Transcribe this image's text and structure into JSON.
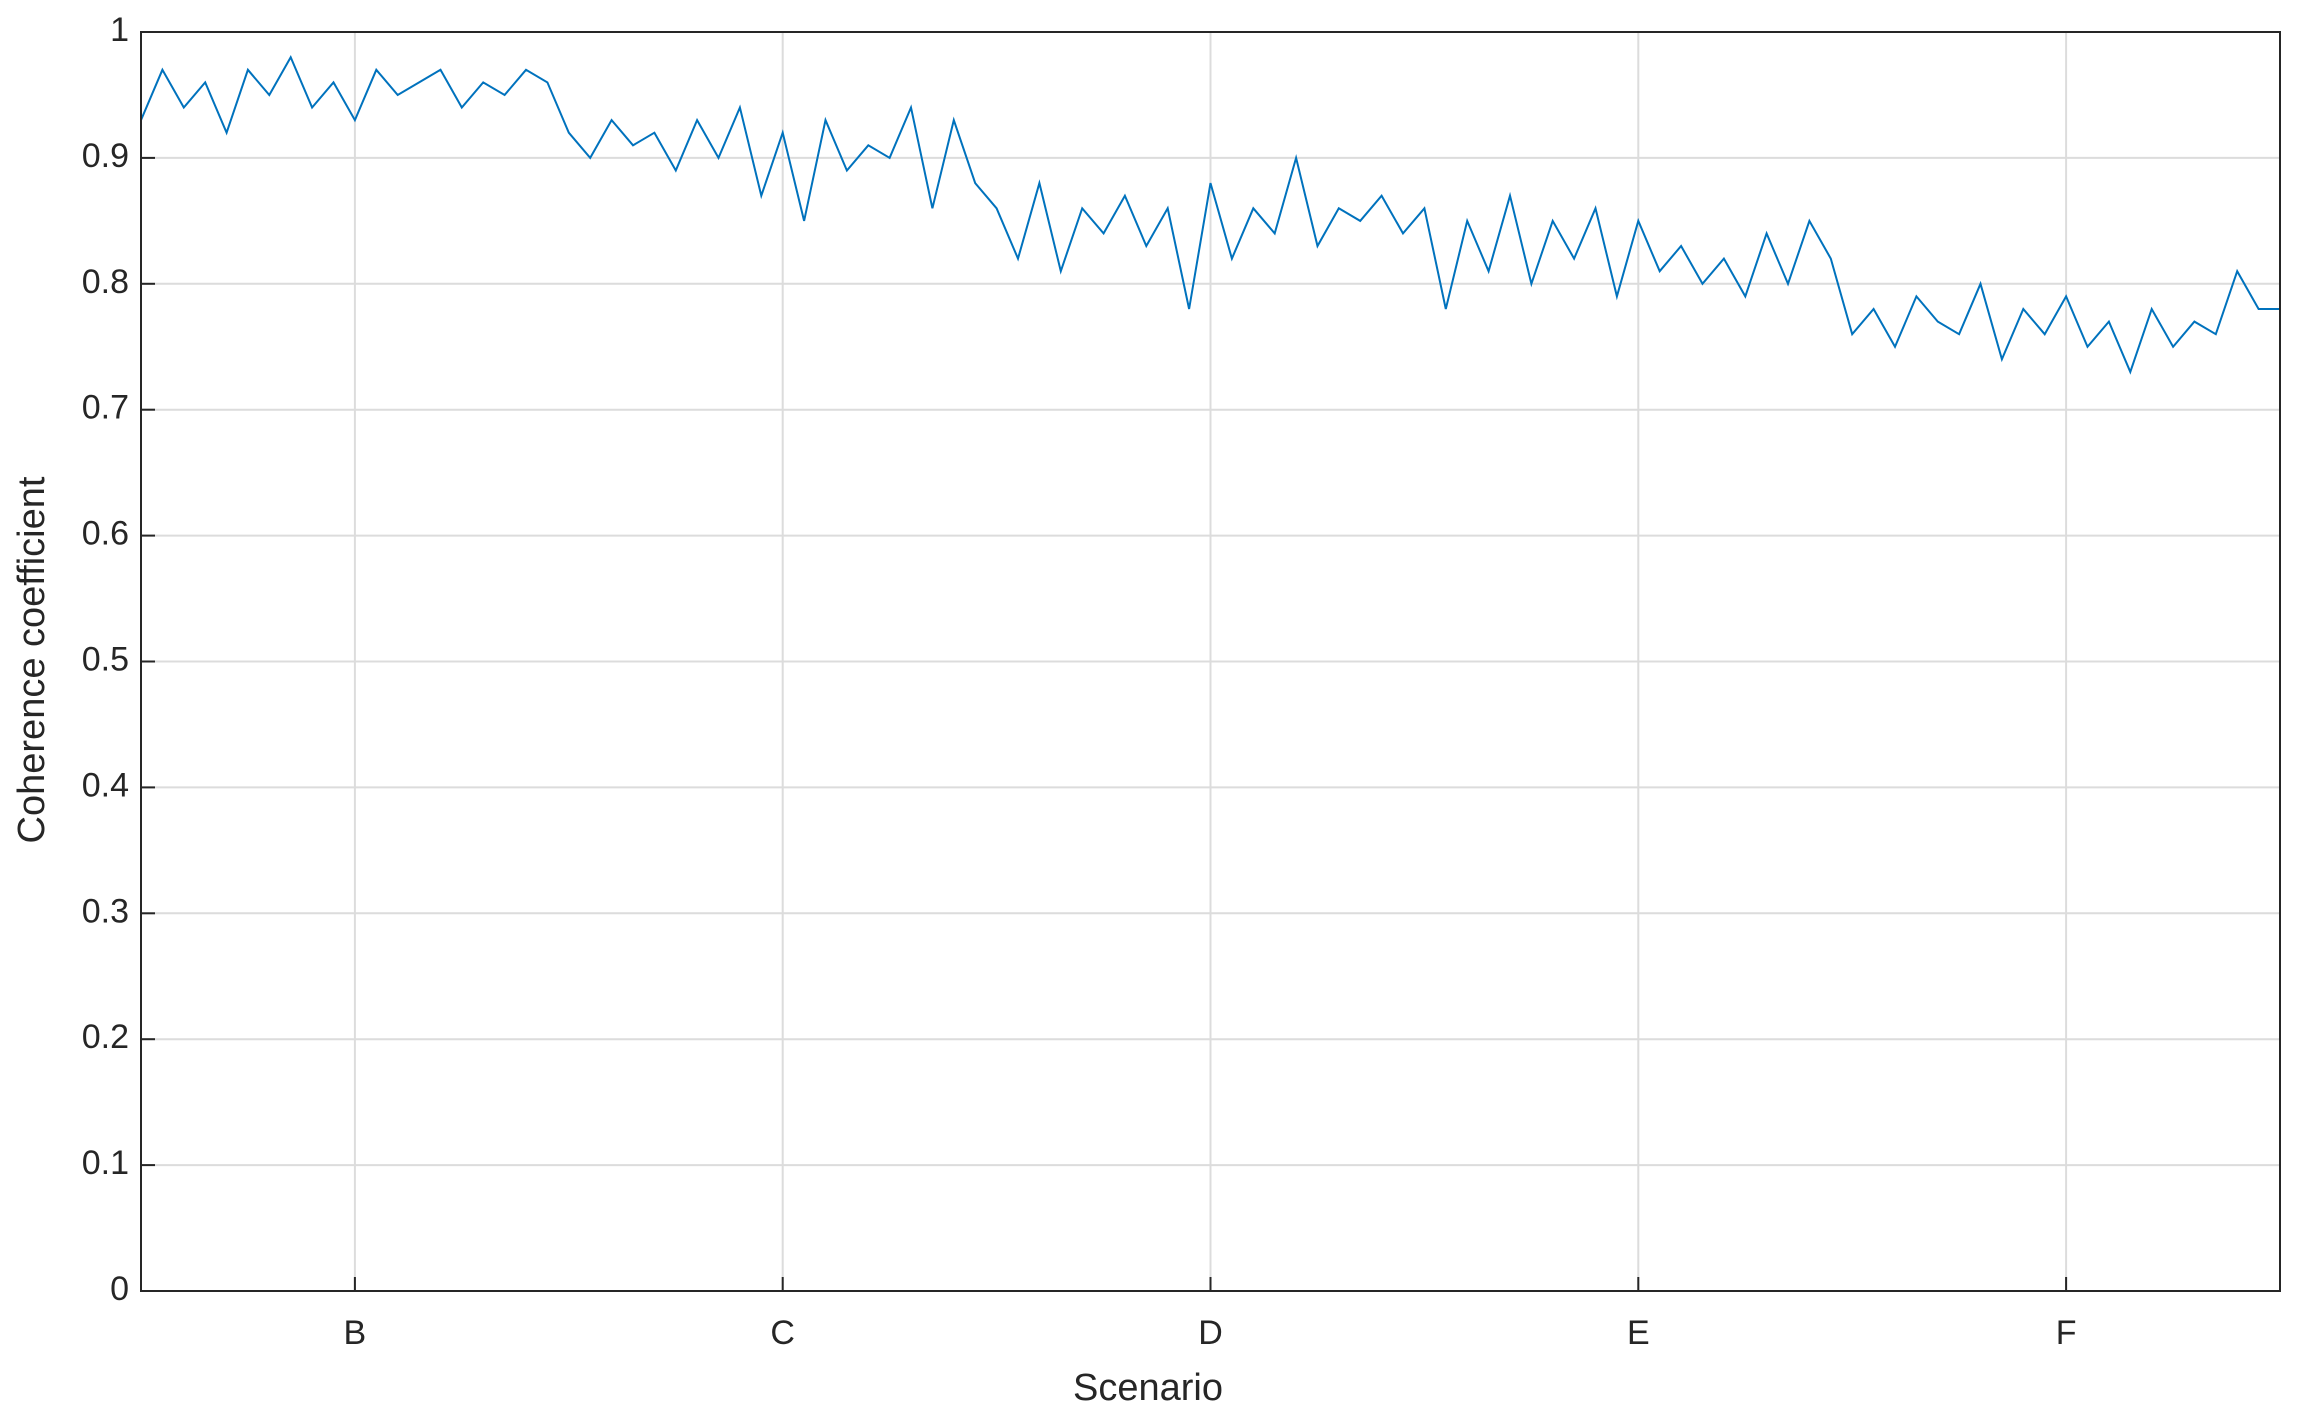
{
  "chart_data": {
    "type": "line",
    "ylabel": "Coherence coefficient",
    "xlabel": "Scenario",
    "x": [
      0,
      0.05,
      0.1,
      0.15,
      0.2,
      0.25,
      0.3,
      0.35,
      0.4,
      0.45,
      0.5,
      0.55,
      0.6,
      0.65,
      0.7,
      0.75,
      0.8,
      0.85,
      0.9,
      0.95,
      1,
      1.05,
      1.1,
      1.15,
      1.2,
      1.25,
      1.3,
      1.35,
      1.4,
      1.45,
      1.5,
      1.55,
      1.6,
      1.65,
      1.7,
      1.75,
      1.8,
      1.85,
      1.9,
      1.95,
      2,
      2.05,
      2.1,
      2.15,
      2.2,
      2.25,
      2.3,
      2.35,
      2.4,
      2.45,
      2.5,
      2.55,
      2.6,
      2.65,
      2.7,
      2.75,
      2.8,
      2.85,
      2.9,
      2.95,
      3,
      3.05,
      3.1,
      3.15,
      3.2,
      3.25,
      3.3,
      3.35,
      3.4,
      3.45,
      3.5,
      3.55,
      3.6,
      3.65,
      3.7,
      3.75,
      3.8,
      3.85,
      3.9,
      3.95,
      4,
      4.05,
      4.1,
      4.15,
      4.2,
      4.25,
      4.3,
      4.35,
      4.4,
      4.45,
      4.5,
      4.55,
      4.6,
      4.65,
      4.7,
      4.75,
      4.8,
      4.85,
      4.9,
      4.95,
      5
    ],
    "values": [
      0.93,
      0.97,
      0.94,
      0.96,
      0.92,
      0.97,
      0.95,
      0.98,
      0.94,
      0.96,
      0.93,
      0.97,
      0.95,
      0.96,
      0.97,
      0.94,
      0.96,
      0.95,
      0.97,
      0.96,
      0.92,
      0.9,
      0.93,
      0.91,
      0.92,
      0.89,
      0.93,
      0.9,
      0.94,
      0.87,
      0.92,
      0.85,
      0.93,
      0.89,
      0.91,
      0.9,
      0.94,
      0.86,
      0.93,
      0.88,
      0.86,
      0.82,
      0.88,
      0.81,
      0.86,
      0.84,
      0.87,
      0.83,
      0.86,
      0.78,
      0.88,
      0.82,
      0.86,
      0.84,
      0.9,
      0.83,
      0.86,
      0.85,
      0.87,
      0.84,
      0.86,
      0.78,
      0.85,
      0.81,
      0.87,
      0.8,
      0.85,
      0.82,
      0.86,
      0.79,
      0.85,
      0.81,
      0.83,
      0.8,
      0.82,
      0.79,
      0.84,
      0.8,
      0.85,
      0.82,
      0.76,
      0.78,
      0.75,
      0.79,
      0.77,
      0.76,
      0.8,
      0.74,
      0.78,
      0.76,
      0.79,
      0.75,
      0.77,
      0.73,
      0.78,
      0.75,
      0.77,
      0.76,
      0.81,
      0.78,
      0.78
    ],
    "color": "#0072bd",
    "xlim": [
      0,
      5
    ],
    "xticks": [
      {
        "value": 0.5,
        "label": "B"
      },
      {
        "value": 1.5,
        "label": "C"
      },
      {
        "value": 2.5,
        "label": "D"
      },
      {
        "value": 3.5,
        "label": "E"
      },
      {
        "value": 4.5,
        "label": "F"
      }
    ],
    "ylim": [
      0,
      1
    ],
    "yticks": [
      0,
      0.1,
      0.2,
      0.3,
      0.4,
      0.5,
      0.6,
      0.7,
      0.8,
      0.9,
      1
    ],
    "grid": true
  }
}
